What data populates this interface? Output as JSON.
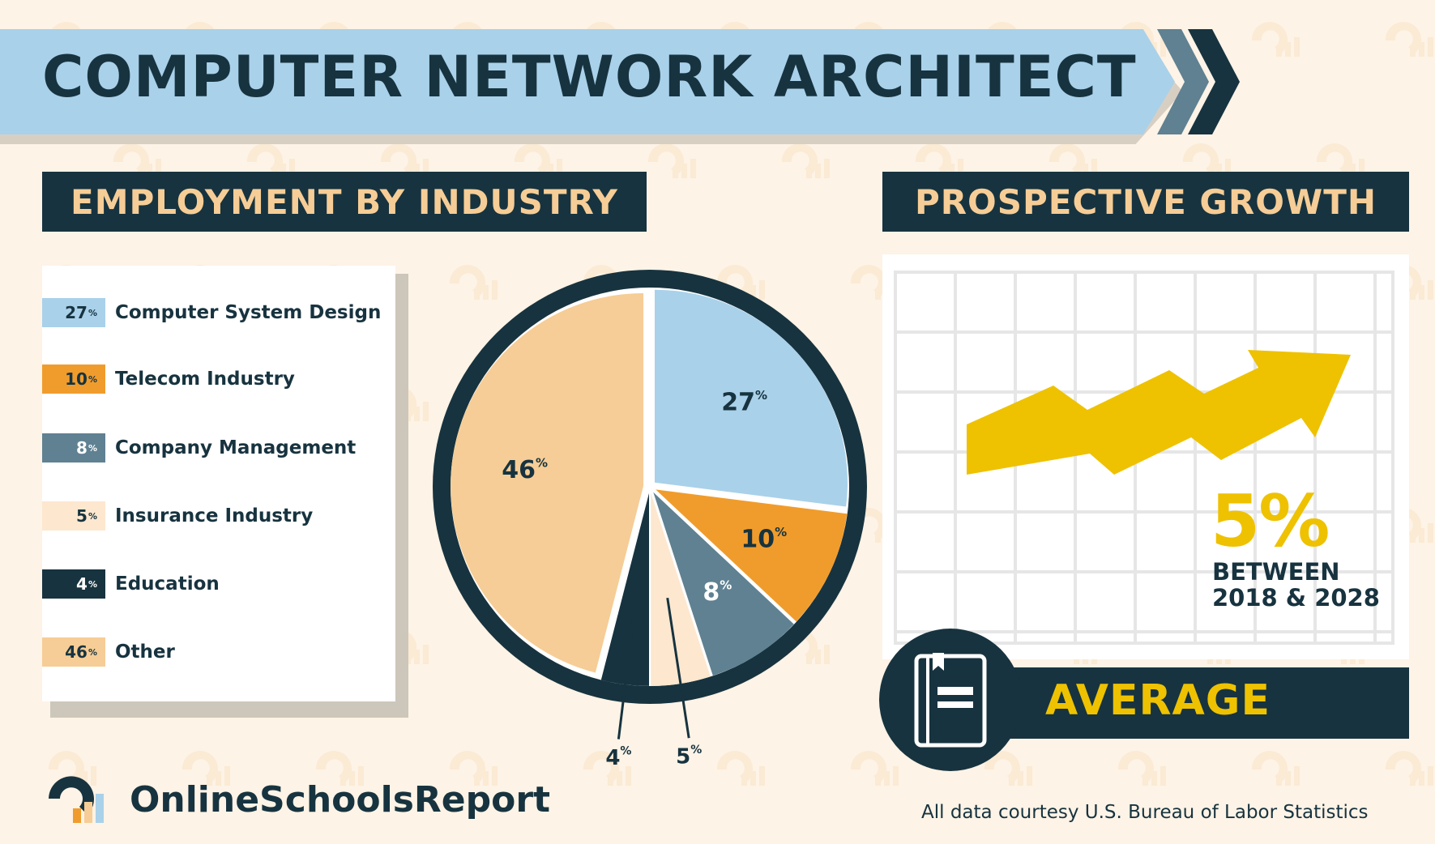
{
  "title": "COMPUTER NETWORK ARCHITECT",
  "sections": {
    "employment_header": "EMPLOYMENT BY INDUSTRY",
    "growth_header": "PROSPECTIVE GROWTH"
  },
  "colors": {
    "navy": "#17333f",
    "light_blue": "#a9d1ea",
    "orange": "#f09c2c",
    "slate": "#5f8192",
    "cream": "#fde7cf",
    "tan": "#f6cd96",
    "yellow": "#eec200",
    "background": "#fdf3e6"
  },
  "chart_data": {
    "type": "pie",
    "title": "",
    "unit": "%",
    "labels": [
      "Computer System Design",
      "Telecom Industry",
      "Company Management",
      "Insurance Industry",
      "Education",
      "Other"
    ],
    "values": [
      27,
      10,
      8,
      5,
      4,
      46
    ],
    "value_labels": [
      "27",
      "10",
      "8",
      "5",
      "4",
      "46"
    ],
    "colors": [
      "#a9d1ea",
      "#f09c2c",
      "#5f8192",
      "#fde7cf",
      "#17333f",
      "#f6cd96"
    ],
    "value_label_colors": [
      "#17333f",
      "#17333f",
      "#ffffff",
      "#17333f",
      "#17333f",
      "#17333f"
    ],
    "legend_position": "left"
  },
  "growth": {
    "value": "5%",
    "line1": "BETWEEN",
    "line2": "2018 & 2028",
    "rating": "AVERAGE",
    "icon": "book-icon"
  },
  "footer": {
    "brand": "OnlineSchoolsReport",
    "credit": "All data courtesy U.S. Bureau of Labor Statistics"
  }
}
